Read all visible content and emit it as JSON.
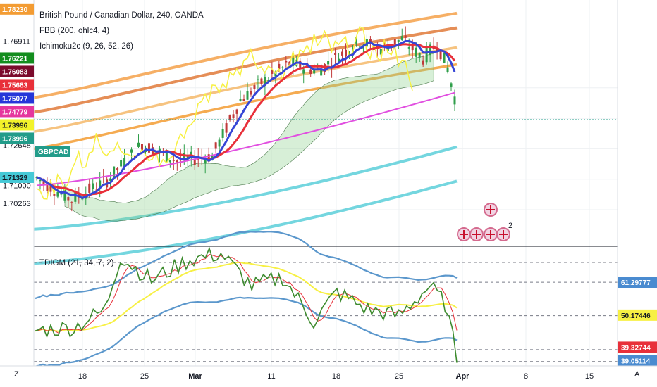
{
  "chart_data": [
    {
      "type": "candlestick",
      "title": "British Pound / Canadian Dollar, 240, OANDA",
      "studies": [
        "FBB (200, ohlc4, 4)",
        "Ichimoku2c (9, 26, 52, 26)"
      ],
      "symbol_tag": "GBPCAD",
      "y_ticks": [
        "1.72648",
        "1.71000",
        "1.70263"
      ],
      "ylim": [
        1.685,
        1.786
      ],
      "price_badges": [
        {
          "label": "1.78230",
          "value": 1.7823,
          "color": "#f39c33"
        },
        {
          "label": "1.76911",
          "value": 1.76911,
          "color": ""
        },
        {
          "label": "1.76221",
          "value": 1.76221,
          "color": "#138d1e"
        },
        {
          "label": "1.76083",
          "value": 1.76083,
          "color": "#7b0a2c"
        },
        {
          "label": "1.75683",
          "value": 1.75683,
          "color": "#e8303a"
        },
        {
          "label": "1.75077",
          "value": 1.75077,
          "color": "#2636d9"
        },
        {
          "label": "1.74779",
          "value": 1.74779,
          "color": "#e5379e"
        },
        {
          "label": "1.73996",
          "value": 1.73996,
          "color": "#f2f22a"
        },
        {
          "label": "1.73996",
          "value": 1.73996,
          "color": "#229c8a"
        },
        {
          "label": "1.71329",
          "value": 1.71329,
          "color": "#45c9d6"
        }
      ],
      "markers_count_label": "2"
    },
    {
      "type": "line",
      "title": "TDIGM (21, 34, 7, 2)",
      "ylim": [
        33,
        73
      ],
      "levels": [
        68,
        61.3,
        50,
        38.5,
        34.5
      ],
      "value_badges": [
        {
          "label": "61.29777",
          "value": 61.29777,
          "color": "#4a8bd0"
        },
        {
          "label": "50.17446",
          "value": 50.17446,
          "color": "#f7f043"
        },
        {
          "label": "39.32744",
          "value": 39.32744,
          "color": "#e8303a"
        },
        {
          "label": "39.05114",
          "value": 39.05114,
          "color": "#4a8bd0"
        }
      ]
    }
  ],
  "x_axis": {
    "ticks": [
      "18",
      "25",
      "Mar",
      "11",
      "18",
      "25",
      "Apr",
      "8",
      "15"
    ]
  },
  "corner": {
    "left": "Z",
    "right": "A"
  }
}
